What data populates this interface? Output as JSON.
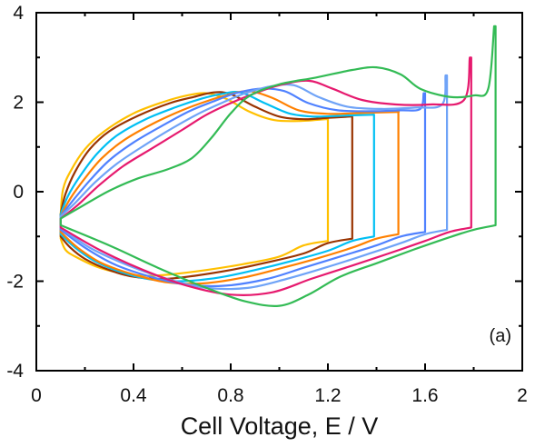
{
  "chart_data": {
    "type": "line",
    "title": "",
    "xlabel": "Cell Voltage, E / V",
    "ylabel": "",
    "xlim": [
      0,
      2
    ],
    "ylim": [
      -4,
      4
    ],
    "xticks": [
      0,
      0.4,
      0.8,
      1.2,
      1.6,
      2
    ],
    "xtick_labels": [
      "0",
      "0.4",
      "0.8",
      "1.2",
      "1.6",
      "2"
    ],
    "yticks": [
      -4,
      -2,
      0,
      2,
      4
    ],
    "ytick_labels": [
      "-4",
      "-2",
      "0",
      "2",
      "4"
    ],
    "grid": false,
    "legend": "none",
    "annotation": "(a)",
    "series": [
      {
        "color": "#FFC000",
        "upper": [
          [
            0.1,
            -0.5
          ],
          [
            0.11,
            0.05
          ],
          [
            0.14,
            0.45
          ],
          [
            0.2,
            0.95
          ],
          [
            0.28,
            1.35
          ],
          [
            0.4,
            1.75
          ],
          [
            0.52,
            2.0
          ],
          [
            0.62,
            2.15
          ],
          [
            0.7,
            2.2
          ],
          [
            0.78,
            2.08
          ],
          [
            0.88,
            1.78
          ],
          [
            0.98,
            1.6
          ],
          [
            1.08,
            1.58
          ],
          [
            1.19,
            1.62
          ]
        ],
        "vmax": 1.2,
        "vmax_y": 1.62,
        "lower_y": -1.1,
        "lower": [
          [
            1.1,
            -1.2
          ],
          [
            1.0,
            -1.45
          ],
          [
            0.85,
            -1.62
          ],
          [
            0.7,
            -1.75
          ],
          [
            0.55,
            -1.85
          ],
          [
            0.45,
            -1.88
          ],
          [
            0.35,
            -1.82
          ],
          [
            0.25,
            -1.68
          ],
          [
            0.16,
            -1.45
          ],
          [
            0.12,
            -1.3
          ],
          [
            0.1,
            -1.05
          ]
        ]
      },
      {
        "color": "#993300",
        "upper": [
          [
            0.1,
            -0.5
          ],
          [
            0.12,
            -0.05
          ],
          [
            0.16,
            0.45
          ],
          [
            0.22,
            0.95
          ],
          [
            0.3,
            1.35
          ],
          [
            0.42,
            1.7
          ],
          [
            0.55,
            1.98
          ],
          [
            0.65,
            2.12
          ],
          [
            0.73,
            2.22
          ],
          [
            0.8,
            2.18
          ],
          [
            0.9,
            1.9
          ],
          [
            1.0,
            1.68
          ],
          [
            1.1,
            1.62
          ],
          [
            1.2,
            1.65
          ],
          [
            1.29,
            1.68
          ]
        ],
        "vmax": 1.3,
        "vmax_y": 1.68,
        "lower_y": -1.05,
        "lower": [
          [
            1.2,
            -1.15
          ],
          [
            1.1,
            -1.38
          ],
          [
            0.95,
            -1.58
          ],
          [
            0.8,
            -1.75
          ],
          [
            0.65,
            -1.88
          ],
          [
            0.52,
            -1.95
          ],
          [
            0.4,
            -1.9
          ],
          [
            0.3,
            -1.75
          ],
          [
            0.2,
            -1.5
          ],
          [
            0.14,
            -1.25
          ],
          [
            0.1,
            -1.0
          ]
        ]
      },
      {
        "color": "#00BFF3",
        "upper": [
          [
            0.1,
            -0.5
          ],
          [
            0.13,
            -0.1
          ],
          [
            0.18,
            0.35
          ],
          [
            0.25,
            0.85
          ],
          [
            0.33,
            1.25
          ],
          [
            0.45,
            1.62
          ],
          [
            0.58,
            1.9
          ],
          [
            0.68,
            2.08
          ],
          [
            0.76,
            2.18
          ],
          [
            0.84,
            2.22
          ],
          [
            0.94,
            1.98
          ],
          [
            1.04,
            1.75
          ],
          [
            1.14,
            1.68
          ],
          [
            1.26,
            1.7
          ],
          [
            1.38,
            1.72
          ]
        ],
        "vmax": 1.39,
        "vmax_y": 1.72,
        "lower_y": -1.0,
        "lower": [
          [
            1.3,
            -1.1
          ],
          [
            1.2,
            -1.32
          ],
          [
            1.05,
            -1.55
          ],
          [
            0.9,
            -1.75
          ],
          [
            0.75,
            -1.92
          ],
          [
            0.6,
            -2.0
          ],
          [
            0.47,
            -1.96
          ],
          [
            0.35,
            -1.8
          ],
          [
            0.24,
            -1.55
          ],
          [
            0.16,
            -1.25
          ],
          [
            0.1,
            -0.95
          ]
        ]
      },
      {
        "color": "#FF8000",
        "upper": [
          [
            0.1,
            -0.55
          ],
          [
            0.14,
            -0.15
          ],
          [
            0.2,
            0.3
          ],
          [
            0.27,
            0.75
          ],
          [
            0.36,
            1.15
          ],
          [
            0.48,
            1.52
          ],
          [
            0.6,
            1.82
          ],
          [
            0.7,
            2.02
          ],
          [
            0.78,
            2.15
          ],
          [
            0.87,
            2.25
          ],
          [
            0.97,
            2.1
          ],
          [
            1.08,
            1.82
          ],
          [
            1.2,
            1.74
          ],
          [
            1.34,
            1.76
          ],
          [
            1.48,
            1.78
          ]
        ],
        "vmax": 1.49,
        "vmax_y": 1.78,
        "lower_y": -0.95,
        "lower": [
          [
            1.4,
            -1.05
          ],
          [
            1.3,
            -1.25
          ],
          [
            1.15,
            -1.5
          ],
          [
            1.0,
            -1.72
          ],
          [
            0.85,
            -1.92
          ],
          [
            0.68,
            -2.05
          ],
          [
            0.53,
            -2.02
          ],
          [
            0.4,
            -1.85
          ],
          [
            0.27,
            -1.6
          ],
          [
            0.17,
            -1.25
          ],
          [
            0.1,
            -0.9
          ]
        ]
      },
      {
        "color": "#4F81FF",
        "upper": [
          [
            0.1,
            -0.55
          ],
          [
            0.15,
            -0.2
          ],
          [
            0.22,
            0.25
          ],
          [
            0.3,
            0.7
          ],
          [
            0.4,
            1.1
          ],
          [
            0.52,
            1.48
          ],
          [
            0.63,
            1.8
          ],
          [
            0.73,
            2.02
          ],
          [
            0.82,
            2.2
          ],
          [
            0.92,
            2.3
          ],
          [
            1.02,
            2.25
          ],
          [
            1.12,
            1.98
          ],
          [
            1.24,
            1.82
          ],
          [
            1.38,
            1.8
          ],
          [
            1.5,
            1.82
          ],
          [
            1.58,
            1.85
          ]
        ],
        "vmax": 1.6,
        "vmax_y": 2.2,
        "lower_y": -0.9,
        "lower": [
          [
            1.5,
            -1.0
          ],
          [
            1.4,
            -1.2
          ],
          [
            1.25,
            -1.45
          ],
          [
            1.1,
            -1.7
          ],
          [
            0.95,
            -1.95
          ],
          [
            0.78,
            -2.1
          ],
          [
            0.62,
            -2.08
          ],
          [
            0.47,
            -1.9
          ],
          [
            0.32,
            -1.62
          ],
          [
            0.2,
            -1.25
          ],
          [
            0.1,
            -0.85
          ]
        ]
      },
      {
        "color": "#6FA3F7",
        "upper": [
          [
            0.1,
            -0.55
          ],
          [
            0.16,
            -0.25
          ],
          [
            0.24,
            0.2
          ],
          [
            0.33,
            0.62
          ],
          [
            0.44,
            1.02
          ],
          [
            0.56,
            1.42
          ],
          [
            0.67,
            1.75
          ],
          [
            0.77,
            2.0
          ],
          [
            0.86,
            2.2
          ],
          [
            0.96,
            2.35
          ],
          [
            1.06,
            2.38
          ],
          [
            1.16,
            2.12
          ],
          [
            1.28,
            1.9
          ],
          [
            1.42,
            1.85
          ],
          [
            1.56,
            1.88
          ],
          [
            1.67,
            1.95
          ]
        ],
        "vmax": 1.69,
        "vmax_y": 2.6,
        "lower_y": -0.85,
        "lower": [
          [
            1.6,
            -0.95
          ],
          [
            1.5,
            -1.15
          ],
          [
            1.35,
            -1.42
          ],
          [
            1.2,
            -1.68
          ],
          [
            1.03,
            -1.95
          ],
          [
            0.87,
            -2.15
          ],
          [
            0.7,
            -2.15
          ],
          [
            0.54,
            -1.95
          ],
          [
            0.38,
            -1.65
          ],
          [
            0.22,
            -1.25
          ],
          [
            0.1,
            -0.8
          ]
        ]
      },
      {
        "color": "#E6196E",
        "upper": [
          [
            0.1,
            -0.6
          ],
          [
            0.17,
            -0.3
          ],
          [
            0.26,
            0.15
          ],
          [
            0.36,
            0.58
          ],
          [
            0.48,
            0.98
          ],
          [
            0.6,
            1.38
          ],
          [
            0.7,
            1.72
          ],
          [
            0.8,
            1.98
          ],
          [
            0.9,
            2.2
          ],
          [
            1.0,
            2.38
          ],
          [
            1.12,
            2.48
          ],
          [
            1.22,
            2.3
          ],
          [
            1.34,
            2.05
          ],
          [
            1.48,
            1.95
          ],
          [
            1.62,
            1.95
          ],
          [
            1.76,
            2.05
          ]
        ],
        "vmax": 1.79,
        "vmax_y": 3.0,
        "lower_y": -0.8,
        "lower": [
          [
            1.7,
            -0.9
          ],
          [
            1.6,
            -1.1
          ],
          [
            1.45,
            -1.38
          ],
          [
            1.3,
            -1.65
          ],
          [
            1.13,
            -1.95
          ],
          [
            0.97,
            -2.25
          ],
          [
            0.8,
            -2.3
          ],
          [
            0.62,
            -2.1
          ],
          [
            0.44,
            -1.75
          ],
          [
            0.26,
            -1.3
          ],
          [
            0.1,
            -0.8
          ]
        ]
      },
      {
        "color": "#33BB55",
        "upper": [
          [
            0.1,
            -0.6
          ],
          [
            0.18,
            -0.35
          ],
          [
            0.3,
            0.02
          ],
          [
            0.42,
            0.3
          ],
          [
            0.54,
            0.5
          ],
          [
            0.64,
            0.75
          ],
          [
            0.72,
            1.2
          ],
          [
            0.8,
            1.75
          ],
          [
            0.88,
            2.15
          ],
          [
            1.0,
            2.4
          ],
          [
            1.15,
            2.55
          ],
          [
            1.3,
            2.72
          ],
          [
            1.4,
            2.78
          ],
          [
            1.5,
            2.62
          ],
          [
            1.58,
            2.3
          ],
          [
            1.7,
            2.12
          ],
          [
            1.8,
            2.15
          ],
          [
            1.86,
            2.3
          ]
        ],
        "vmax": 1.89,
        "vmax_y": 3.7,
        "lower_y": -0.75,
        "lower": [
          [
            1.8,
            -0.85
          ],
          [
            1.7,
            -1.02
          ],
          [
            1.55,
            -1.3
          ],
          [
            1.4,
            -1.6
          ],
          [
            1.25,
            -1.9
          ],
          [
            1.12,
            -2.3
          ],
          [
            1.0,
            -2.55
          ],
          [
            0.86,
            -2.45
          ],
          [
            0.7,
            -2.15
          ],
          [
            0.5,
            -1.7
          ],
          [
            0.3,
            -1.2
          ],
          [
            0.1,
            -0.75
          ]
        ]
      }
    ]
  }
}
